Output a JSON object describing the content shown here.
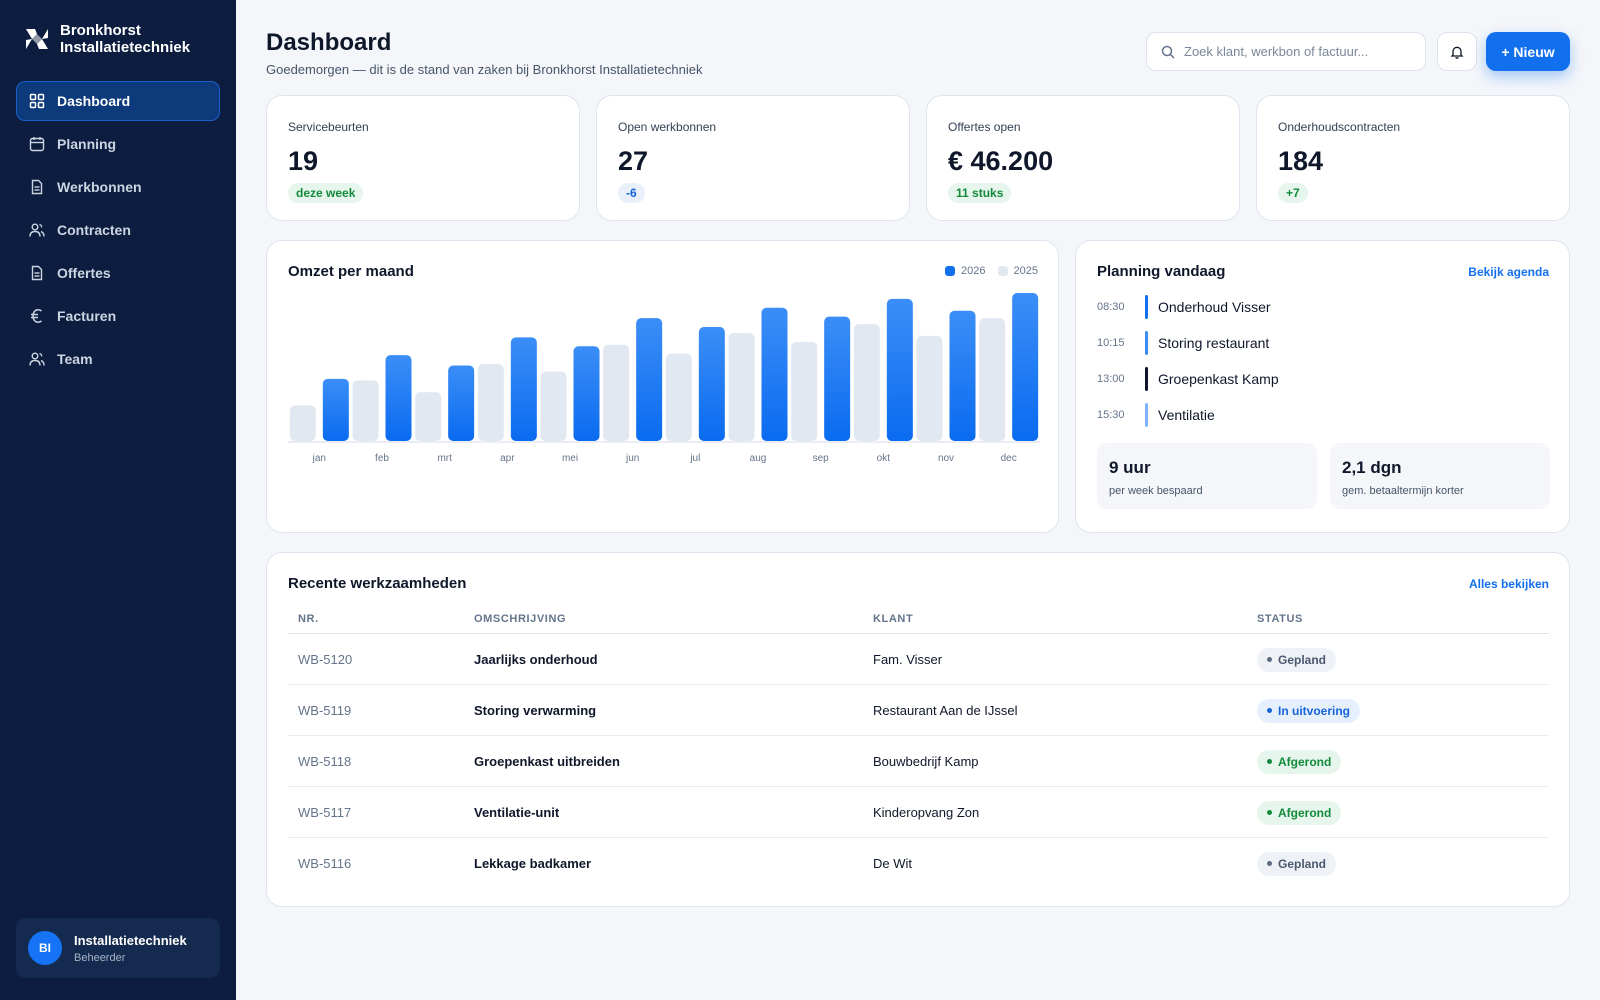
{
  "brand": {
    "line1": "Bronkhorst",
    "line2": "Installatietechniek"
  },
  "nav": [
    {
      "label": "Dashboard",
      "icon": "grid-icon",
      "active": true
    },
    {
      "label": "Planning",
      "icon": "calendar-icon"
    },
    {
      "label": "Werkbonnen",
      "icon": "document-icon"
    },
    {
      "label": "Contracten",
      "icon": "users-icon"
    },
    {
      "label": "Offertes",
      "icon": "document-icon"
    },
    {
      "label": "Facturen",
      "icon": "euro-icon"
    },
    {
      "label": "Team",
      "icon": "users-icon"
    }
  ],
  "user": {
    "initials": "BI",
    "name": "Installatietechniek",
    "role": "Beheerder"
  },
  "header": {
    "title": "Dashboard",
    "subtitle": "Goedemorgen — dit is de stand van zaken bij Bronkhorst Installatietechniek",
    "search_placeholder": "Zoek klant, werkbon of factuur...",
    "new_button": "+ Nieuw"
  },
  "stats": [
    {
      "label": "Servicebeurten",
      "value": "19",
      "badge": "deze week",
      "badge_style": "green"
    },
    {
      "label": "Open werkbonnen",
      "value": "27",
      "badge": "-6",
      "badge_style": "blue"
    },
    {
      "label": "Offertes open",
      "value": "€ 46.200",
      "badge": "11 stuks",
      "badge_style": "green"
    },
    {
      "label": "Onderhoudscontracten",
      "value": "184",
      "badge": "+7",
      "badge_style": "green"
    }
  ],
  "revenue": {
    "title": "Omzet per maand",
    "legend": [
      "2026",
      "2025"
    ]
  },
  "chart_data": {
    "type": "bar",
    "title": "Omzet per maand",
    "categories": [
      "jan",
      "feb",
      "mrt",
      "apr",
      "mei",
      "jun",
      "jul",
      "aug",
      "sep",
      "okt",
      "nov",
      "dec"
    ],
    "series": [
      {
        "name": "2025",
        "color": "#e2e8f2",
        "values": [
          24,
          41,
          33,
          52,
          47,
          65,
          59,
          73,
          67,
          79,
          71,
          83
        ]
      },
      {
        "name": "2026",
        "color": "#1270ef",
        "values": [
          42,
          58,
          51,
          70,
          64,
          83,
          77,
          90,
          84,
          96,
          88,
          100
        ]
      }
    ],
    "ylim": [
      0,
      100
    ],
    "grid": false,
    "legend_position": "top-right"
  },
  "planning": {
    "title": "Planning vandaag",
    "link": "Bekijk agenda",
    "items": [
      {
        "time": "08:30",
        "label": "Onderhoud Visser",
        "color": "#1270ef"
      },
      {
        "time": "10:15",
        "label": "Storing restaurant",
        "color": "#3b8bf5"
      },
      {
        "time": "13:00",
        "label": "Groepenkast Kamp",
        "color": "#0f172a"
      },
      {
        "time": "15:30",
        "label": "Ventilatie",
        "color": "#7fb2f8"
      }
    ],
    "metrics": [
      {
        "value": "9 uur",
        "label": "per week bespaard"
      },
      {
        "value": "2,1 dgn",
        "label": "gem. betaaltermijn korter"
      }
    ]
  },
  "recent": {
    "title": "Recente werkzaamheden",
    "link": "Alles bekijken",
    "columns": [
      "NR.",
      "OMSCHRIJVING",
      "KLANT",
      "STATUS"
    ],
    "rows": [
      {
        "nr": "WB-5120",
        "desc": "Jaarlijks onderhoud",
        "client": "Fam. Visser",
        "status": "Gepland",
        "status_style": "planned"
      },
      {
        "nr": "WB-5119",
        "desc": "Storing verwarming",
        "client": "Restaurant Aan de IJssel",
        "status": "In uitvoering",
        "status_style": "progress"
      },
      {
        "nr": "WB-5118",
        "desc": "Groepenkast uitbreiden",
        "client": "Bouwbedrijf Kamp",
        "status": "Afgerond",
        "status_style": "done"
      },
      {
        "nr": "WB-5117",
        "desc": "Ventilatie-unit",
        "client": "Kinderopvang Zon",
        "status": "Afgerond",
        "status_style": "done"
      },
      {
        "nr": "WB-5116",
        "desc": "Lekkage badkamer",
        "client": "De Wit",
        "status": "Gepland",
        "status_style": "planned"
      }
    ]
  }
}
